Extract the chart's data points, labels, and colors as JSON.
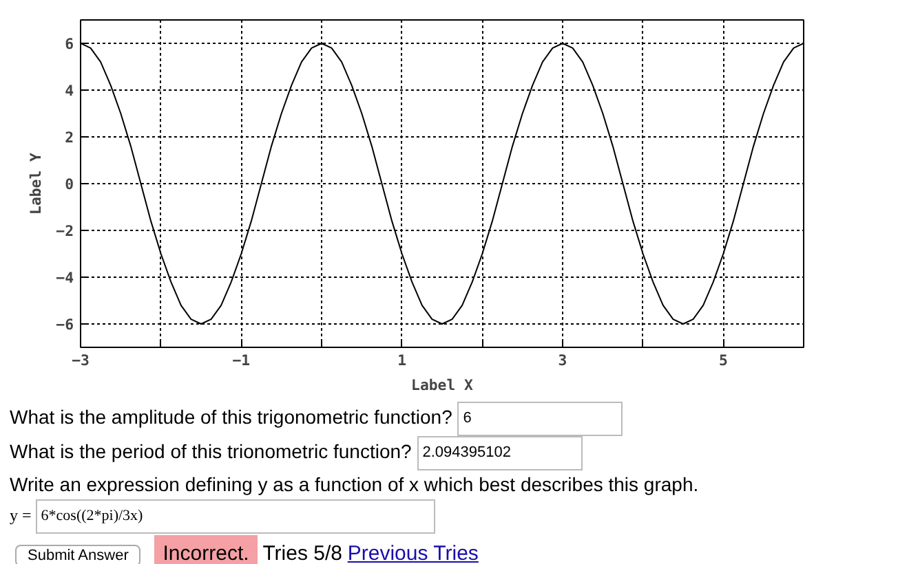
{
  "chart_data": {
    "type": "line",
    "xlabel": "Label X",
    "ylabel": "Label Y",
    "x": [
      -3,
      -2.875,
      -2.75,
      -2.625,
      -2.5,
      -2.375,
      -2.25,
      -2.125,
      -2,
      -1.875,
      -1.75,
      -1.625,
      -1.5,
      -1.375,
      -1.25,
      -1.125,
      -1,
      -0.875,
      -0.75,
      -0.625,
      -0.5,
      -0.375,
      -0.25,
      -0.125,
      0,
      0.125,
      0.25,
      0.375,
      0.5,
      0.625,
      0.75,
      0.875,
      1,
      1.125,
      1.25,
      1.375,
      1.5,
      1.625,
      1.75,
      1.875,
      2,
      2.125,
      2.25,
      2.375,
      2.5,
      2.625,
      2.75,
      2.875,
      3,
      3.125,
      3.25,
      3.375,
      3.5,
      3.625,
      3.75,
      3.875,
      4,
      4.125,
      4.25,
      4.375,
      4.5,
      4.625,
      4.75,
      4.875,
      5,
      5.125,
      5.25,
      5.375,
      5.5,
      5.625,
      5.75,
      5.875,
      6
    ],
    "series": [
      {
        "color": "#000000",
        "values": [
          6,
          5.8,
          5.2,
          4.2,
          3,
          1.6,
          0,
          -1.6,
          -3,
          -4.2,
          -5.2,
          -5.8,
          -6,
          -5.8,
          -5.2,
          -4.2,
          -3,
          -1.6,
          0,
          1.6,
          3,
          4.2,
          5.2,
          5.8,
          6,
          5.8,
          5.2,
          4.2,
          3,
          1.6,
          0,
          -1.6,
          -3,
          -4.2,
          -5.2,
          -5.8,
          -6,
          -5.8,
          -5.2,
          -4.2,
          -3,
          -1.6,
          0,
          1.6,
          3,
          4.2,
          5.2,
          5.8,
          6,
          5.8,
          5.2,
          4.2,
          3,
          1.6,
          0,
          -1.6,
          -3,
          -4.2,
          -5.2,
          -5.8,
          -6,
          -5.8,
          -5.2,
          -4.2,
          -3,
          -1.6,
          0,
          1.6,
          3,
          4.2,
          5.2,
          5.8,
          6
        ]
      }
    ],
    "xlim": [
      -3,
      6
    ],
    "ylim": [
      -7,
      7
    ],
    "xticks": [
      -3,
      {
        "value": -2,
        "label": null
      },
      -1,
      {
        "value": 0,
        "label": null
      },
      1,
      {
        "value": 2,
        "label": null
      },
      3,
      {
        "value": 4,
        "label": null
      },
      5,
      {
        "value": 6,
        "label": null
      }
    ],
    "yticks": [
      -6,
      -4,
      -2,
      0,
      2,
      4,
      6
    ],
    "grid": true,
    "line_style": "solid",
    "annotations": [
      "What is the amplitude of this trigonometric function?",
      "6",
      "What is the period of this trionometric function?",
      "2.094395102",
      "Write an expression defining y as a function of x which best describes this graph.",
      "y =",
      "6*cos((2*pi)/3x)",
      "Submit Answer",
      "Incorrect.",
      "Tries 5/8",
      "Previous Tries"
    ]
  }
}
